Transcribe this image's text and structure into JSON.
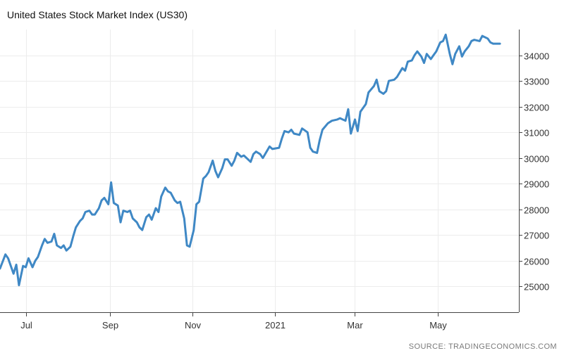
{
  "chart_data": {
    "type": "line",
    "title": "United States Stock Market Index (US30)",
    "source": "SOURCE: TRADINGECONOMICS.COM",
    "xlabel": "",
    "ylabel": "",
    "x_tick_labels": [
      "Jul",
      "Sep",
      "Nov",
      "2021",
      "Mar",
      "May"
    ],
    "x_tick_dates": [
      "2020-07-01",
      "2020-09-01",
      "2020-11-01",
      "2021-01-01",
      "2021-03-01",
      "2021-05-01"
    ],
    "y_ticks": [
      25000,
      26000,
      27000,
      28000,
      29000,
      30000,
      31000,
      32000,
      33000,
      34000
    ],
    "ylim": [
      24000,
      35000
    ],
    "xlim": [
      "2020-06-12",
      "2021-06-30"
    ],
    "grid": true,
    "line_color": "#3f88c5",
    "series": [
      {
        "x": [
          "2020-06-12",
          "2020-06-16",
          "2020-06-18",
          "2020-06-22",
          "2020-06-24",
          "2020-06-26",
          "2020-06-29",
          "2020-07-01",
          "2020-07-03",
          "2020-07-06",
          "2020-07-08",
          "2020-07-10",
          "2020-07-13",
          "2020-07-15",
          "2020-07-17",
          "2020-07-20",
          "2020-07-22",
          "2020-07-24",
          "2020-07-27",
          "2020-07-29",
          "2020-07-31",
          "2020-08-03",
          "2020-08-05",
          "2020-08-07",
          "2020-08-10",
          "2020-08-12",
          "2020-08-14",
          "2020-08-17",
          "2020-08-19",
          "2020-08-21",
          "2020-08-24",
          "2020-08-26",
          "2020-08-28",
          "2020-08-31",
          "2020-09-02",
          "2020-09-04",
          "2020-09-07",
          "2020-09-09",
          "2020-09-11",
          "2020-09-14",
          "2020-09-16",
          "2020-09-18",
          "2020-09-21",
          "2020-09-23",
          "2020-09-25",
          "2020-09-28",
          "2020-09-30",
          "2020-10-02",
          "2020-10-05",
          "2020-10-07",
          "2020-10-09",
          "2020-10-12",
          "2020-10-14",
          "2020-10-16",
          "2020-10-19",
          "2020-10-21",
          "2020-10-23",
          "2020-10-26",
          "2020-10-28",
          "2020-10-30",
          "2020-11-02",
          "2020-11-04",
          "2020-11-06",
          "2020-11-09",
          "2020-11-11",
          "2020-11-13",
          "2020-11-16",
          "2020-11-18",
          "2020-11-20",
          "2020-11-23",
          "2020-11-25",
          "2020-11-27",
          "2020-11-30",
          "2020-12-02",
          "2020-12-04",
          "2020-12-07",
          "2020-12-09",
          "2020-12-11",
          "2020-12-14",
          "2020-12-16",
          "2020-12-18",
          "2020-12-21",
          "2020-12-23",
          "2020-12-28",
          "2020-12-30",
          "2021-01-04",
          "2021-01-06",
          "2021-01-08",
          "2021-01-11",
          "2021-01-13",
          "2021-01-15",
          "2021-01-19",
          "2021-01-21",
          "2021-01-25",
          "2021-01-27",
          "2021-01-29",
          "2021-02-01",
          "2021-02-03",
          "2021-02-05",
          "2021-02-09",
          "2021-02-12",
          "2021-02-16",
          "2021-02-18",
          "2021-02-22",
          "2021-02-24",
          "2021-02-26",
          "2021-03-01",
          "2021-03-03",
          "2021-03-05",
          "2021-03-09",
          "2021-03-11",
          "2021-03-15",
          "2021-03-17",
          "2021-03-19",
          "2021-03-22",
          "2021-03-24",
          "2021-03-26",
          "2021-03-30",
          "2021-04-01",
          "2021-04-05",
          "2021-04-07",
          "2021-04-09",
          "2021-04-12",
          "2021-04-14",
          "2021-04-16",
          "2021-04-19",
          "2021-04-21",
          "2021-04-23",
          "2021-04-26",
          "2021-04-28",
          "2021-04-30",
          "2021-05-03",
          "2021-05-05",
          "2021-05-07",
          "2021-05-10",
          "2021-05-12",
          "2021-05-14",
          "2021-05-17",
          "2021-05-19",
          "2021-05-21",
          "2021-05-24",
          "2021-05-26",
          "2021-05-28",
          "2021-06-01",
          "2021-06-03",
          "2021-06-07",
          "2021-06-09",
          "2021-06-11",
          "2021-06-14",
          "2021-06-16"
        ],
        "y": [
          25700,
          26250,
          26100,
          25500,
          25850,
          25050,
          25800,
          25750,
          26100,
          25750,
          26000,
          26150,
          26600,
          26850,
          26700,
          26750,
          27050,
          26600,
          26500,
          26600,
          26400,
          26550,
          26950,
          27300,
          27550,
          27650,
          27900,
          27950,
          27800,
          27800,
          28050,
          28350,
          28450,
          28200,
          29050,
          28250,
          28150,
          27500,
          27950,
          27900,
          27950,
          27650,
          27500,
          27300,
          27200,
          27700,
          27800,
          27600,
          28050,
          27900,
          28500,
          28850,
          28700,
          28650,
          28350,
          28250,
          28300,
          27650,
          26600,
          26550,
          27200,
          28200,
          28300,
          29200,
          29300,
          29450,
          29900,
          29500,
          29250,
          29600,
          29950,
          29950,
          29700,
          29900,
          30200,
          30050,
          30100,
          30000,
          29850,
          30150,
          30250,
          30150,
          30000,
          30450,
          30350,
          30400,
          30750,
          31050,
          31000,
          31100,
          30950,
          30900,
          31150,
          31000,
          30400,
          30250,
          30200,
          30700,
          31100,
          31350,
          31450,
          31500,
          31550,
          31450,
          31900,
          30950,
          31500,
          31050,
          31800,
          32100,
          32550,
          32800,
          33050,
          32600,
          32500,
          32600,
          33000,
          33050,
          33150,
          33500,
          33400,
          33750,
          33800,
          34000,
          34150,
          33950,
          33700,
          34050,
          33850,
          34000,
          34150,
          34500,
          34550,
          34800,
          34050,
          33650,
          34050,
          34350,
          33950,
          34150,
          34350,
          34550,
          34600,
          34550,
          34750,
          34650,
          34500,
          34450,
          34450,
          34450
        ]
      }
    ]
  }
}
